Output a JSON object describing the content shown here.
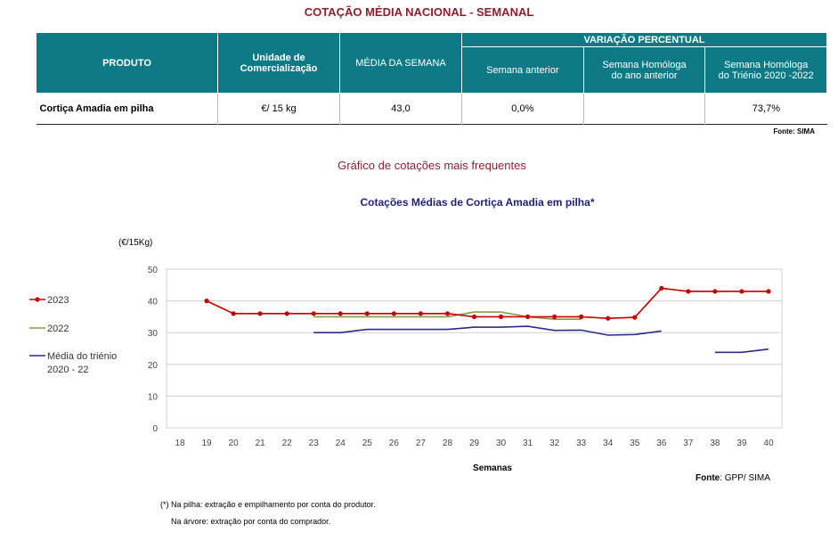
{
  "header": {
    "title": "COTAÇÃO MÉDIA NACIONAL - SEMANAL"
  },
  "table": {
    "col_produto": "PRODUTO",
    "col_unidade": "Unidade de Comercialização",
    "col_media": "MÉDIA DA SEMANA",
    "col_variacao": "VARIAÇÃO PERCENTUAL",
    "sub_anterior": "Semana anterior",
    "sub_homologa_line1": "Semana Homóloga",
    "sub_homologa_line2": "do ano anterior",
    "sub_trienio_line1": "Semana Homóloga",
    "sub_trienio_line2": "do Triénio 2020 -2022",
    "row": {
      "produto": "Cortiça Amadia em pilha",
      "unidade": "€/ 15 kg",
      "media": "43,0",
      "anterior": "0,0%",
      "homologa": "",
      "trienio": "73,7%"
    },
    "source": "Fonte: SIMA"
  },
  "section_subtitle": "Gráfico de cotações mais frequentes",
  "chart_data": {
    "type": "line",
    "title": "Cotações Médias de Cortiça Amadia em pilha*",
    "ylabel": "(€/15Kg)",
    "xlabel": "Semanas",
    "ylim": [
      0,
      50
    ],
    "yticks": [
      0,
      10,
      20,
      30,
      40,
      50
    ],
    "x": [
      18,
      19,
      20,
      21,
      22,
      23,
      24,
      25,
      26,
      27,
      28,
      29,
      30,
      31,
      32,
      33,
      34,
      35,
      36,
      37,
      38,
      39,
      40
    ],
    "grid": true,
    "legend_position": "left",
    "series": [
      {
        "name": "2023",
        "color": "#c00000",
        "markers": true,
        "values": [
          null,
          40,
          36,
          36,
          36,
          36,
          36,
          36,
          36,
          36,
          36,
          35,
          35,
          35,
          35,
          35,
          34.5,
          34.8,
          44,
          43,
          43,
          43,
          43
        ]
      },
      {
        "name": "2022",
        "color": "#8a9a48",
        "markers": false,
        "values": [
          null,
          null,
          null,
          null,
          null,
          35,
          35,
          35,
          35,
          35,
          35,
          36.5,
          36.5,
          35,
          34.2,
          34.2,
          null,
          null,
          null,
          null,
          null,
          null,
          null
        ]
      },
      {
        "name": "Média do triénio 2020 - 22",
        "name_line1": "Média do triénio",
        "name_line2": "2020 - 22",
        "color": "#2a2a8a",
        "markers": false,
        "values": [
          null,
          null,
          null,
          null,
          null,
          30,
          30,
          31,
          31,
          31,
          31,
          31.7,
          31.7,
          32,
          30.7,
          30.8,
          29.2,
          29.4,
          30.5,
          null,
          23.8,
          23.8,
          24.8
        ]
      }
    ],
    "source": "Fonte: GPP/ SIMA",
    "source_prefix": "Fonte",
    "source_rest": ": GPP/ SIMA"
  },
  "footnotes": {
    "line1": "(*) Na pilha: extração e empilhamento por conta do produtor.",
    "line2": "Na árvore: extração por conta do comprador."
  }
}
